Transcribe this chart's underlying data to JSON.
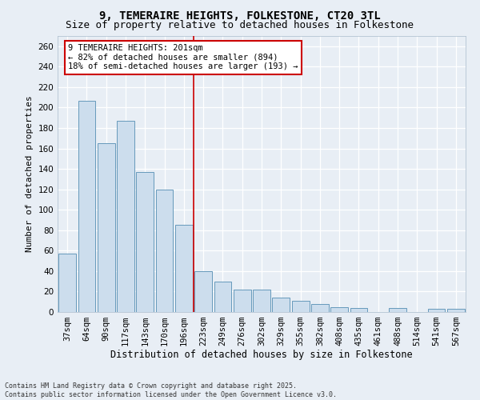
{
  "title1": "9, TEMERAIRE HEIGHTS, FOLKESTONE, CT20 3TL",
  "title2": "Size of property relative to detached houses in Folkestone",
  "xlabel": "Distribution of detached houses by size in Folkestone",
  "ylabel": "Number of detached properties",
  "categories": [
    "37sqm",
    "64sqm",
    "90sqm",
    "117sqm",
    "143sqm",
    "170sqm",
    "196sqm",
    "223sqm",
    "249sqm",
    "276sqm",
    "302sqm",
    "329sqm",
    "355sqm",
    "382sqm",
    "408sqm",
    "435sqm",
    "461sqm",
    "488sqm",
    "514sqm",
    "541sqm",
    "567sqm"
  ],
  "values": [
    57,
    207,
    165,
    187,
    137,
    120,
    85,
    40,
    30,
    22,
    22,
    14,
    11,
    8,
    5,
    4,
    0,
    4,
    0,
    3,
    3
  ],
  "bar_color": "#ccdded",
  "bar_edge_color": "#6699bb",
  "vline_x": 6.5,
  "vline_color": "#cc0000",
  "annotation_text": "9 TEMERAIRE HEIGHTS: 201sqm\n← 82% of detached houses are smaller (894)\n18% of semi-detached houses are larger (193) →",
  "annotation_box_color": "#ffffff",
  "annotation_box_edge_color": "#cc0000",
  "ylim": [
    0,
    270
  ],
  "yticks": [
    0,
    20,
    40,
    60,
    80,
    100,
    120,
    140,
    160,
    180,
    200,
    220,
    240,
    260
  ],
  "bg_color": "#e8eef5",
  "plot_bg_color": "#e8eef5",
  "grid_color": "#ffffff",
  "footer_text": "Contains HM Land Registry data © Crown copyright and database right 2025.\nContains public sector information licensed under the Open Government Licence v3.0.",
  "title1_fontsize": 10,
  "title2_fontsize": 9,
  "ylabel_fontsize": 8,
  "xlabel_fontsize": 8.5,
  "tick_fontsize": 7.5,
  "annotation_fontsize": 7.5,
  "footer_fontsize": 6
}
